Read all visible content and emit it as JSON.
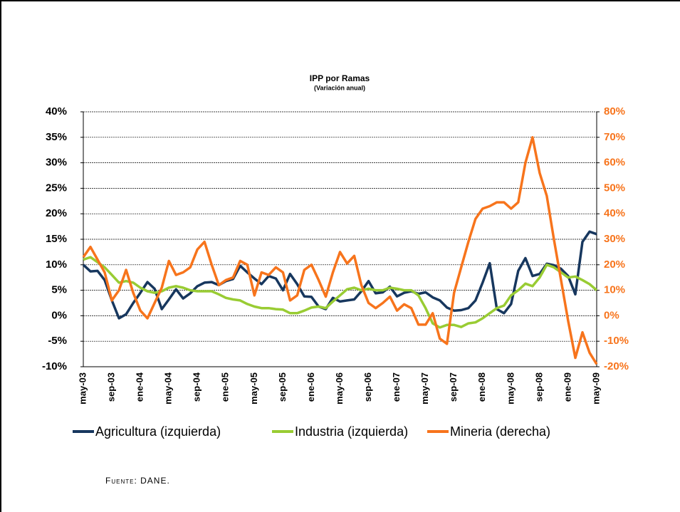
{
  "chart_data": {
    "type": "line",
    "title": "IPP por Ramas",
    "subtitle": "(Variación anual)",
    "source": "Fuente: DANE.",
    "categories": [
      "may-03",
      null,
      null,
      null,
      "sep-03",
      null,
      null,
      null,
      "ene-04",
      null,
      null,
      null,
      "may-04",
      null,
      null,
      null,
      "sep-04",
      null,
      null,
      null,
      "ene-05",
      null,
      null,
      null,
      "may-05",
      null,
      null,
      null,
      "sep-05",
      null,
      null,
      null,
      "ene-06",
      null,
      null,
      null,
      "may-06",
      null,
      null,
      null,
      "sep-06",
      null,
      null,
      null,
      "ene-07",
      null,
      null,
      null,
      "may-07",
      null,
      null,
      null,
      "sep-07",
      null,
      null,
      null,
      "ene-08",
      null,
      null,
      null,
      "may-08",
      null,
      null,
      null,
      "sep-08",
      null,
      null,
      null,
      "ene-09",
      null,
      null,
      null,
      "may-09"
    ],
    "ylim": [
      -10,
      40
    ],
    "yticks": [
      {
        "value": -10,
        "label": "-10%"
      },
      {
        "value": -5,
        "label": "-5%"
      },
      {
        "value": 0,
        "label": "0%"
      },
      {
        "value": 5,
        "label": "5%"
      },
      {
        "value": 10,
        "label": "10%"
      },
      {
        "value": 15,
        "label": "15%"
      },
      {
        "value": 20,
        "label": "20%"
      },
      {
        "value": 25,
        "label": "25%"
      },
      {
        "value": 30,
        "label": "30%"
      },
      {
        "value": 35,
        "label": "35%"
      },
      {
        "value": 40,
        "label": "40%"
      }
    ],
    "y2lim": [
      -20,
      80
    ],
    "y2ticks": [
      {
        "value": -20,
        "label": "-20%"
      },
      {
        "value": -10,
        "label": "-10%"
      },
      {
        "value": 0,
        "label": "0%"
      },
      {
        "value": 10,
        "label": "10%"
      },
      {
        "value": 20,
        "label": "20%"
      },
      {
        "value": 30,
        "label": "30%"
      },
      {
        "value": 40,
        "label": "40%"
      },
      {
        "value": 50,
        "label": "50%"
      },
      {
        "value": 60,
        "label": "60%"
      },
      {
        "value": 70,
        "label": "70%"
      },
      {
        "value": 80,
        "label": "80%"
      }
    ],
    "y2color": "#f7741c",
    "grid": true,
    "legend": "bottom",
    "series": [
      {
        "name": "Agricultura (izquierda)",
        "color": "#17375e",
        "values": [
          10,
          8.7,
          8.8,
          7,
          3,
          -0.5,
          0.3,
          2.5,
          4.5,
          6.6,
          5.3,
          1.3,
          3.2,
          5.2,
          3.4,
          4.4,
          5.8,
          6.5,
          6.6,
          6,
          6.8,
          7.2,
          9.8,
          8.5,
          7.3,
          6.2,
          7.8,
          7.3,
          5,
          8.2,
          6.2,
          3.8,
          3.7,
          1.8,
          1.3,
          3.5,
          2.8,
          3,
          3.2,
          4.8,
          6.8,
          4.4,
          4.6,
          5.7,
          3.8,
          4.5,
          4.8,
          4.3,
          4.6,
          3.6,
          3,
          1.6,
          1,
          1.1,
          1.5,
          3,
          6.5,
          10.3,
          1.3,
          0.5,
          2.3,
          8.8,
          11.3,
          7.8,
          8.2,
          10.2,
          9.9,
          9.2,
          7.8,
          4.2,
          14.5,
          16.5,
          16
        ]
      },
      {
        "name": "Industria (izquierda)",
        "color": "#99cc33",
        "values": [
          11,
          11.5,
          10.5,
          9.5,
          8,
          6.5,
          6.8,
          6.5,
          5.5,
          4.8,
          4.5,
          4.8,
          5.5,
          5.8,
          5.5,
          5,
          4.8,
          4.8,
          4.8,
          4.2,
          3.5,
          3.2,
          3,
          2.3,
          1.8,
          1.5,
          1.5,
          1.3,
          1.2,
          0.5,
          0.5,
          1,
          1.6,
          1.8,
          1.5,
          2.8,
          4,
          5.2,
          5.5,
          5,
          5.3,
          5,
          5,
          5.5,
          5.3,
          5,
          5,
          4,
          1.5,
          -1.5,
          -2.3,
          -1.8,
          -1.8,
          -2.2,
          -1.5,
          -1.3,
          -0.5,
          0.5,
          1.5,
          2,
          4,
          5,
          6.3,
          5.8,
          7.5,
          10,
          9.5,
          8.5,
          7.5,
          7.7,
          7,
          6.2,
          5
        ]
      },
      {
        "name": "Mineria (derecha)",
        "color": "#f7741c",
        "axis": "y2",
        "values": [
          23,
          27,
          22,
          17,
          6,
          10,
          18,
          9,
          2,
          -1,
          5,
          11,
          21.5,
          16,
          17,
          19,
          26,
          29,
          20,
          12,
          14,
          15,
          21.5,
          20,
          8,
          17,
          16,
          19,
          17,
          6,
          8,
          18,
          20,
          14,
          7.5,
          17,
          25,
          20.5,
          23.5,
          12,
          5,
          3,
          5,
          7.5,
          2,
          4.5,
          3,
          -3.5,
          -3.5,
          1,
          -9,
          -11,
          9,
          19,
          29,
          38,
          42,
          43,
          44.5,
          44.5,
          42,
          44.5,
          60,
          70,
          56,
          47,
          30,
          14,
          -2,
          -16.5,
          -6.5,
          -14.5,
          -19
        ]
      }
    ]
  }
}
